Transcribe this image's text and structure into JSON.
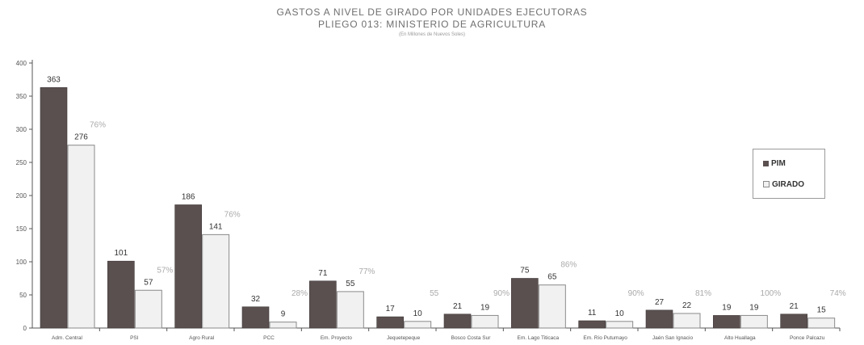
{
  "chart_data": {
    "type": "bar",
    "title": "GASTOS A NIVEL DE GIRADO POR UNIDADES EJECUTORAS",
    "subtitle": "PLIEGO 013: MINISTERIO DE AGRICULTURA",
    "note": "(En Millones de Nuevos Soles)",
    "xlabel": "",
    "ylabel": "",
    "ylim": [
      0,
      400
    ],
    "yticks": [
      0,
      50,
      100,
      150,
      200,
      250,
      300,
      350,
      400
    ],
    "grid": false,
    "legend_position": "right",
    "categories": [
      "Adm. Central",
      "PSI",
      "Agro Rural",
      "PCC",
      "Em. Proyecto",
      "Jequetepeque",
      "Bosco Costa Sur",
      "Em. Lago Titicaca",
      "Em. Río Putumayo",
      "Jaén San Ignacio",
      "Alto Huallaga",
      "Ponce Palcazu"
    ],
    "series": [
      {
        "name": "PIM",
        "values": [
          363,
          101,
          186,
          32,
          71,
          17,
          21,
          75,
          11,
          27,
          19,
          21
        ],
        "labels": [
          "363",
          "101",
          "186",
          "32",
          "71",
          "17",
          "21",
          "75",
          "11",
          "27",
          "19",
          "21"
        ]
      },
      {
        "name": "GIRADO",
        "values": [
          276,
          57,
          141,
          9,
          55,
          10,
          19,
          65,
          10,
          22,
          19,
          15
        ],
        "labels": [
          "276",
          "57",
          "141",
          "9",
          "55",
          "10",
          "19",
          "65",
          "10",
          "22",
          "19",
          "15"
        ]
      }
    ],
    "percent_labels": [
      "76%",
      "57%",
      "76%",
      "28%",
      "77%",
      "55",
      "90%",
      "86%",
      "90%",
      "81%",
      "100%",
      "74%"
    ],
    "colors": {
      "pim": "#5b5050",
      "girado": "#f1f1f1",
      "girado_stroke": "#8a8a8a",
      "axis": "#555555"
    }
  }
}
